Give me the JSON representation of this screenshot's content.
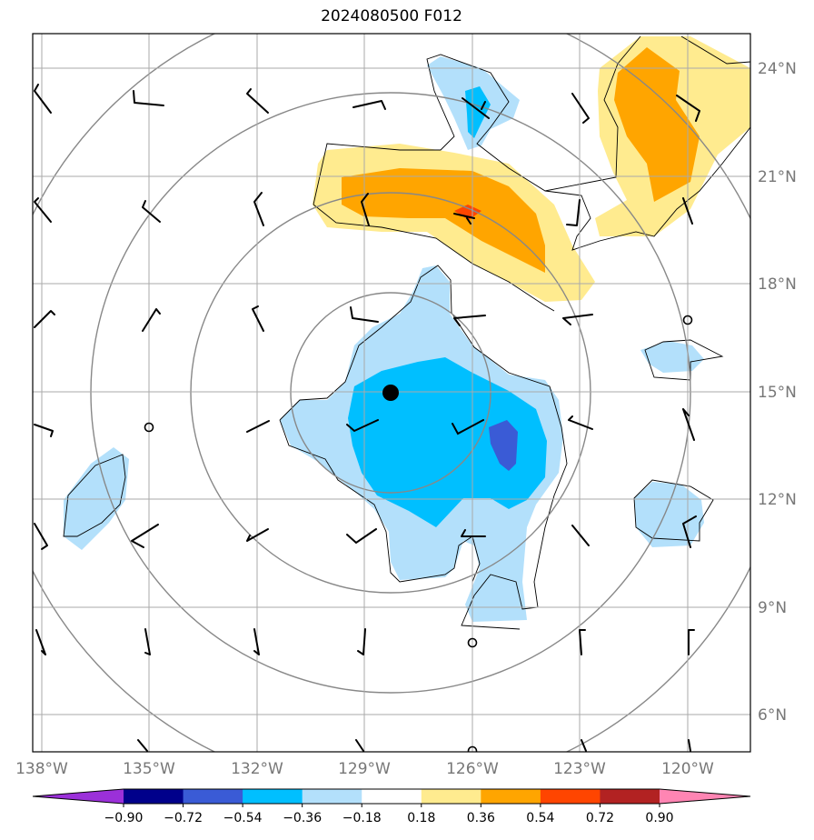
{
  "title": "2024080500 F012",
  "lon_ticks": [
    "138°W",
    "135°W",
    "132°W",
    "129°W",
    "126°W",
    "123°W",
    "120°W"
  ],
  "lat_ticks": [
    "24°N",
    "21°N",
    "18°N",
    "15°N",
    "12°N",
    "9°N",
    "6°N"
  ],
  "colorbar": {
    "ticks": [
      "−0.90",
      "−0.72",
      "−0.54",
      "−0.36",
      "−0.18",
      "0.18",
      "0.36",
      "0.54",
      "0.72",
      "0.90"
    ],
    "colors": [
      "#9b30d9",
      "#00008b",
      "#3a5bd6",
      "#00bfff",
      "#b3e0fb",
      "#ffffff",
      "#ffeb8f",
      "#ffa500",
      "#ff4500",
      "#b22222",
      "#ff85b3"
    ]
  },
  "storm_center_marker": "filled-black-circle",
  "map_extent": {
    "lon": [
      -138.3,
      -118.3
    ],
    "lat": [
      5.0,
      25.0
    ]
  }
}
